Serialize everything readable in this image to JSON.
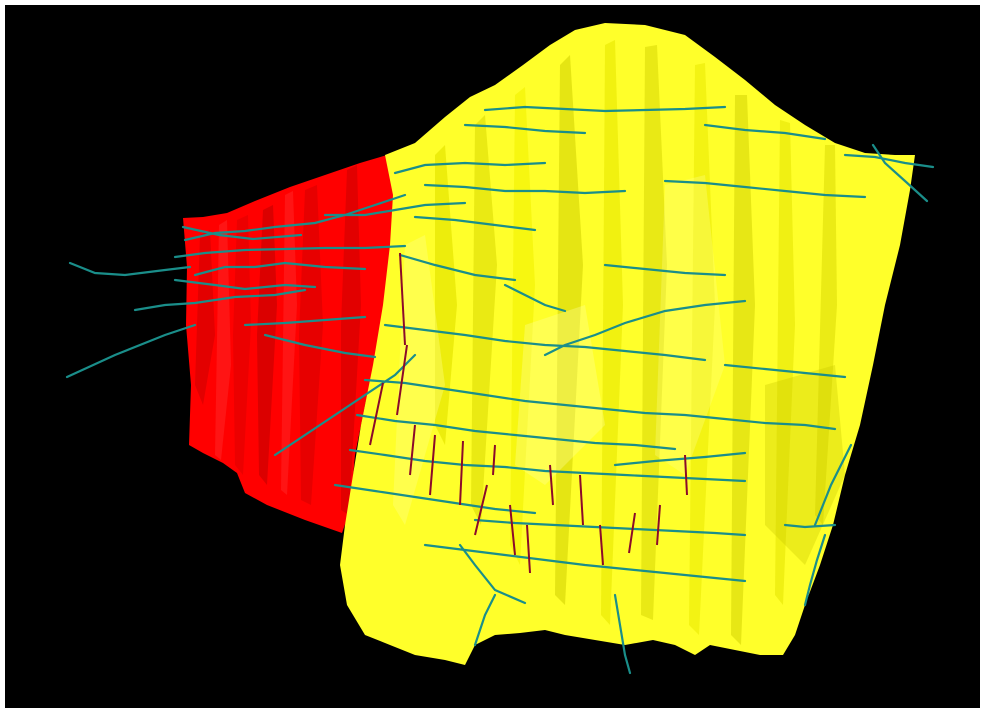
{
  "scene": {
    "background_color": "#000000",
    "frame_color": "#ffffff",
    "surfaces": [
      {
        "name": "red-fault-surface",
        "color": "#ff0000"
      },
      {
        "name": "yellow-fault-surface",
        "color": "#ffff2a"
      }
    ],
    "tunnel_color": "#1a8e8a",
    "drillhole_color": "#8b0a2a"
  }
}
